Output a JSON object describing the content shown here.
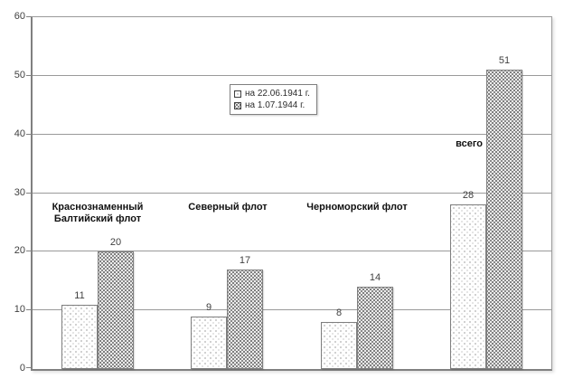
{
  "chart_data": {
    "type": "bar",
    "title": "",
    "xlabel": "",
    "ylabel": "",
    "ylim": [
      0,
      60
    ],
    "yticks": [
      0,
      10,
      20,
      30,
      40,
      50,
      60
    ],
    "grid": true,
    "legend_position": "inside-top-center",
    "bar_value_labels": true,
    "categories": [
      "Краснознаменный Балтийский флот",
      "Северный флот",
      "Черноморский флот",
      "всего"
    ],
    "category_label_lines": [
      [
        "Краснознаменный",
        "Балтийский флот"
      ],
      [
        "Северный флот"
      ],
      [
        "Черноморский флот"
      ],
      [
        "всего"
      ]
    ],
    "category_label_placement": [
      "above-group",
      "above-group",
      "above-group",
      "beside-last-bar"
    ],
    "series": [
      {
        "name": "на 22.06.1941 г.",
        "values": [
          11,
          9,
          8,
          28
        ],
        "fill": "light-dots"
      },
      {
        "name": "на 1.07.1944 г.",
        "values": [
          20,
          17,
          14,
          51
        ],
        "fill": "dense-dots"
      }
    ]
  },
  "colors": {
    "gridline": "#9a9a9a",
    "axis": "#808080",
    "bar_border": "#7f7f7f",
    "value_label": "#3f3f3f",
    "category_label": "#111111",
    "background": "#ffffff"
  }
}
